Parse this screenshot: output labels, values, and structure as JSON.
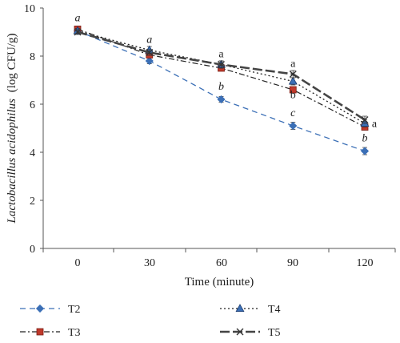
{
  "chart_data": {
    "type": "line",
    "xlabel": "Time (minute)",
    "ylabel_italic": "Lactobacillus acidophilus",
    "ylabel_unit": "(log CFU/g)",
    "x": [
      0,
      30,
      60,
      90,
      120
    ],
    "x_ticks": [
      "0",
      "30",
      "60",
      "90",
      "120"
    ],
    "ylim": [
      0,
      10
    ],
    "y_ticks": [
      "0",
      "2",
      "4",
      "6",
      "8",
      "10"
    ],
    "grid": false,
    "legend_position": "bottom",
    "series": [
      {
        "name": "T2",
        "values": [
          9.05,
          7.8,
          6.2,
          5.1,
          4.05
        ],
        "errors": [
          0.1,
          0.12,
          0.12,
          0.15,
          0.15
        ],
        "color": "#3b6fb6",
        "marker": "diamond",
        "dash": "7,5",
        "stroke_width": 1.3
      },
      {
        "name": "T3",
        "values": [
          9.12,
          8.05,
          7.5,
          6.6,
          5.05
        ],
        "errors": [
          0.1,
          0.12,
          0.12,
          0.12,
          0.12
        ],
        "color": "#222222",
        "marker": "square",
        "marker_fill": "#c0392b",
        "dash": "7,3,2,3",
        "stroke_width": 1.2
      },
      {
        "name": "T4",
        "values": [
          9.05,
          8.25,
          7.65,
          6.95,
          5.2
        ],
        "errors": [
          0.1,
          0.15,
          0.15,
          0.15,
          0.15
        ],
        "color": "#222222",
        "marker": "triangle",
        "marker_fill": "#3b6fb6",
        "dash": "2,3",
        "stroke_width": 1.3
      },
      {
        "name": "T5",
        "values": [
          9.0,
          8.15,
          7.65,
          7.25,
          5.35
        ],
        "errors": [
          0.1,
          0.12,
          0.15,
          0.15,
          0.15
        ],
        "color": "#444444",
        "marker": "x",
        "dash": "12,4",
        "stroke_width": 2.6
      }
    ],
    "annotations": [
      {
        "text": "a",
        "x": 0,
        "y": 9.45,
        "italic": true
      },
      {
        "text": "a",
        "x": 30,
        "y": 8.55,
        "italic": true
      },
      {
        "text": "a",
        "x": 60,
        "y": 7.95,
        "italic": false
      },
      {
        "text": "b",
        "x": 60,
        "y": 6.6,
        "italic": true
      },
      {
        "text": "a",
        "x": 90,
        "y": 7.55,
        "italic": false
      },
      {
        "text": "b",
        "x": 90,
        "y": 6.25,
        "italic": false
      },
      {
        "text": "c",
        "x": 90,
        "y": 5.5,
        "italic": true
      },
      {
        "text": "a",
        "x": 124,
        "y": 5.05,
        "italic": false
      },
      {
        "text": "b",
        "x": 120,
        "y": 4.45,
        "italic": true
      }
    ]
  }
}
